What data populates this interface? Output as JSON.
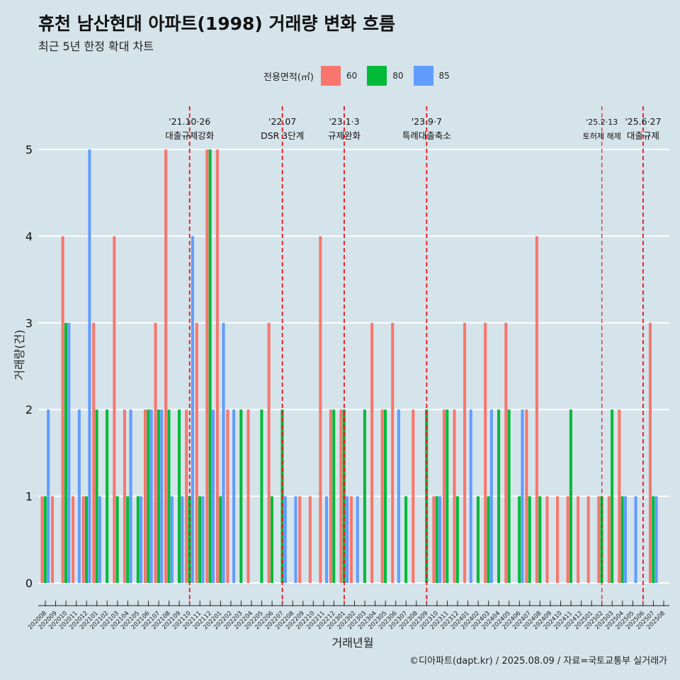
{
  "header": {
    "title": "휴천 남산현대 아파트(1998) 거래량 변화 흐름",
    "subtitle": "최근 5년 한정 확대 차트"
  },
  "legend": {
    "title": "전용면적(㎡)",
    "items": [
      {
        "label": "60",
        "color": "#f8766d"
      },
      {
        "label": "80",
        "color": "#00ba38"
      },
      {
        "label": "85",
        "color": "#619cff"
      }
    ]
  },
  "caption": "©디아파트(dapt.kr) / 2025.08.09 / 자료=국토교통부 실거래가",
  "chart_data": {
    "type": "bar",
    "title": "휴천 남산현대 아파트(1998) 거래량 변화 흐름",
    "subtitle": "최근 5년 한정 확대 차트",
    "xlabel": "거래년월",
    "ylabel": "거래량(건)",
    "ylim": [
      -0.25,
      5.55
    ],
    "yticks": [
      0,
      1,
      2,
      3,
      4,
      5
    ],
    "grid": true,
    "legend_position": "top",
    "categories": [
      "202008",
      "202009",
      "202010",
      "202011",
      "202012",
      "202101",
      "202102",
      "202103",
      "202104",
      "202105",
      "202106",
      "202107",
      "202108",
      "202109",
      "202110",
      "202111",
      "202112",
      "202201",
      "202202",
      "202203",
      "202204",
      "202205",
      "202206",
      "202207",
      "202208",
      "202209",
      "202210",
      "202211",
      "202212",
      "202301",
      "202302",
      "202303",
      "202304",
      "202305",
      "202306",
      "202307",
      "202308",
      "202309",
      "202310",
      "202311",
      "202312",
      "202401",
      "202402",
      "202403",
      "202404",
      "202405",
      "202406",
      "202407",
      "202408",
      "202409",
      "202410",
      "202411",
      "202412",
      "202501",
      "202502",
      "202503",
      "202504",
      "202505",
      "202506",
      "202507",
      "202508"
    ],
    "series": [
      {
        "name": "60",
        "color": "#f8766d",
        "values": [
          1,
          1,
          4,
          1,
          1,
          3,
          null,
          4,
          2,
          null,
          2,
          3,
          5,
          null,
          2,
          3,
          5,
          5,
          2,
          null,
          2,
          null,
          3,
          null,
          null,
          1,
          1,
          4,
          2,
          2,
          1,
          null,
          3,
          2,
          3,
          null,
          2,
          null,
          1,
          2,
          2,
          3,
          null,
          3,
          null,
          3,
          null,
          2,
          4,
          1,
          1,
          1,
          1,
          1,
          1,
          1,
          2,
          null,
          null,
          3,
          null
        ]
      },
      {
        "name": "80",
        "color": "#00ba38",
        "values": [
          1,
          null,
          3,
          null,
          1,
          2,
          2,
          1,
          1,
          1,
          2,
          2,
          2,
          2,
          1,
          1,
          5,
          1,
          null,
          2,
          null,
          2,
          1,
          2,
          null,
          null,
          null,
          null,
          2,
          2,
          null,
          2,
          null,
          2,
          null,
          1,
          null,
          2,
          1,
          2,
          1,
          null,
          1,
          1,
          2,
          2,
          1,
          1,
          1,
          null,
          null,
          2,
          null,
          null,
          1,
          2,
          1,
          null,
          null,
          1,
          null
        ]
      },
      {
        "name": "85",
        "color": "#619cff",
        "values": [
          2,
          null,
          3,
          2,
          5,
          1,
          null,
          null,
          2,
          1,
          2,
          2,
          1,
          1,
          4,
          1,
          2,
          3,
          2,
          null,
          null,
          null,
          null,
          1,
          1,
          null,
          null,
          1,
          null,
          1,
          1,
          null,
          null,
          null,
          2,
          null,
          null,
          null,
          1,
          null,
          null,
          2,
          null,
          2,
          null,
          null,
          2,
          null,
          null,
          null,
          null,
          null,
          null,
          null,
          null,
          null,
          1,
          1,
          null,
          1,
          null
        ]
      }
    ],
    "annotations": [
      {
        "at": "202110",
        "date": "'21.10·26",
        "label": "대출규제강화"
      },
      {
        "at": "202207",
        "date": "'22.07",
        "label": "DSR 3단계"
      },
      {
        "at": "202301",
        "date": "'23.1·3",
        "label": "규제완화"
      },
      {
        "at": "202309",
        "date": "'23.9·7",
        "label": "특례대출축소"
      },
      {
        "at": "202502",
        "date": "'25.2·13",
        "label": "토허제 해제"
      },
      {
        "at": "202506",
        "date": "'25.6·27",
        "label": "대출규제"
      }
    ]
  }
}
